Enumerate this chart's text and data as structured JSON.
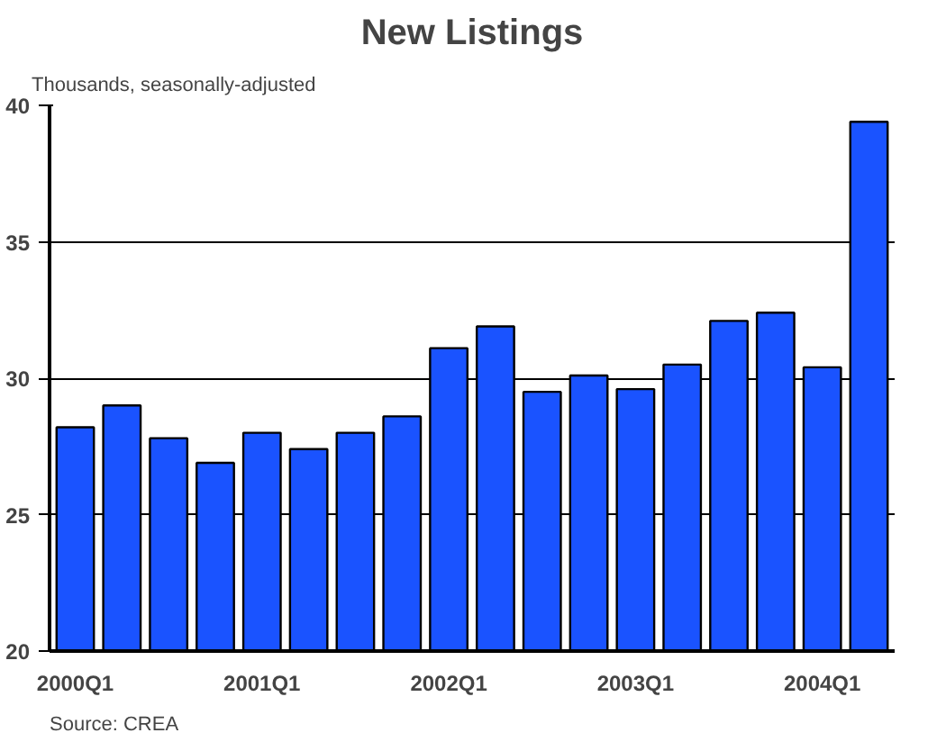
{
  "chart_data": {
    "type": "bar",
    "title": "New Listings",
    "ylabel": "Thousands, seasonally-adjusted",
    "categories": [
      "2000Q1",
      null,
      null,
      null,
      "2001Q1",
      null,
      null,
      null,
      "2002Q1",
      null,
      null,
      null,
      "2003Q1",
      null,
      null,
      null,
      "2004Q1",
      null
    ],
    "values": [
      28.2,
      29.0,
      27.8,
      26.9,
      28.0,
      27.4,
      28.0,
      28.6,
      31.1,
      31.9,
      29.5,
      30.1,
      29.6,
      30.5,
      32.1,
      32.4,
      30.4,
      39.4
    ],
    "color": "#1a53ff",
    "ylim": [
      20,
      40
    ],
    "yticks": [
      20,
      25,
      30,
      35,
      40
    ],
    "grid": "y",
    "annotations": [
      "Source: CREA"
    ]
  }
}
